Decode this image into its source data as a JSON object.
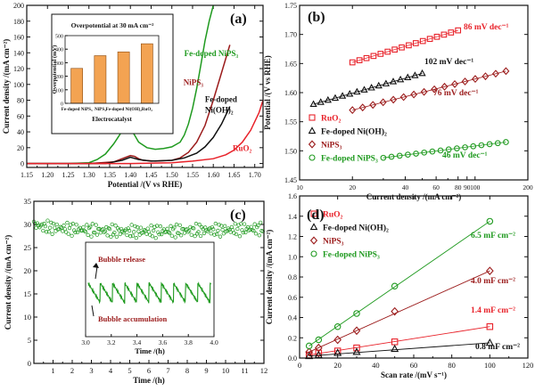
{
  "colors": {
    "red": "#e8222a",
    "black": "#111111",
    "darkred": "#9b1b1b",
    "green": "#1f9a1f",
    "bar": "#f3a352",
    "barEdge": "#8a4a10"
  },
  "chart_data": [
    {
      "panel": "(a)",
      "type": "line",
      "xlabel": "Potential /(V vs RHE)",
      "ylabel": "Current density /(mA cm⁻²)",
      "xlim": [
        1.15,
        1.72
      ],
      "ylim": [
        -5,
        200
      ],
      "xticks": [
        "1.15",
        "1.20",
        "1.25",
        "1.30",
        "1.35",
        "1.40",
        "1.45",
        "1.50",
        "1.55",
        "1.60",
        "1.65",
        "1.70"
      ],
      "yticks": [
        "0",
        "20",
        "40",
        "60",
        "80",
        "100",
        "120",
        "140",
        "160",
        "180",
        "200"
      ],
      "series": [
        {
          "name": "Fe-doped NiPS₃",
          "color": "green",
          "x": [
            1.15,
            1.25,
            1.3,
            1.32,
            1.34,
            1.36,
            1.37,
            1.38,
            1.39,
            1.4,
            1.41,
            1.42,
            1.44,
            1.46,
            1.48,
            1.5,
            1.52,
            1.53,
            1.54,
            1.55,
            1.56,
            1.57,
            1.58,
            1.59,
            1.6
          ],
          "y": [
            0,
            0,
            1,
            5,
            12,
            25,
            33,
            41,
            46,
            44,
            36,
            27,
            20,
            18,
            19,
            21,
            27,
            36,
            50,
            70,
            95,
            125,
            155,
            180,
            200
          ]
        },
        {
          "name": "NiPS₃",
          "color": "darkred",
          "x": [
            1.15,
            1.3,
            1.36,
            1.38,
            1.4,
            1.41,
            1.42,
            1.43,
            1.46,
            1.5,
            1.52,
            1.54,
            1.56,
            1.58,
            1.6,
            1.62,
            1.64
          ],
          "y": [
            0,
            0,
            2,
            6,
            10,
            9,
            6,
            4,
            3,
            4,
            7,
            14,
            27,
            48,
            80,
            115,
            150
          ]
        },
        {
          "name": "Fe-doped Ni(OH)₂",
          "color": "black",
          "x": [
            1.15,
            1.34,
            1.38,
            1.4,
            1.42,
            1.45,
            1.5,
            1.53,
            1.56,
            1.58,
            1.6,
            1.62,
            1.64
          ],
          "y": [
            0,
            0,
            4,
            8,
            5,
            3,
            4,
            7,
            13,
            21,
            33,
            50,
            72
          ]
        },
        {
          "name": "RuO₂",
          "color": "red",
          "x": [
            1.15,
            1.4,
            1.5,
            1.55,
            1.6,
            1.63,
            1.65,
            1.67,
            1.69,
            1.71,
            1.72
          ],
          "y": [
            0,
            0,
            1,
            3,
            6,
            11,
            17,
            27,
            42,
            64,
            80
          ]
        }
      ],
      "labels": [
        {
          "text": "Fe-doped NiPS₃",
          "color": "green",
          "x": 1.53,
          "y": 136
        },
        {
          "text": "NiPS₃",
          "color": "darkred",
          "x": 1.528,
          "y": 99
        },
        {
          "text": "Fe-doped",
          "color": "black",
          "x": 1.58,
          "y": 78
        },
        {
          "text": "Ni(OH)₂",
          "color": "black",
          "x": 1.58,
          "y": 64
        },
        {
          "text": "RuO₂",
          "color": "red",
          "x": 1.647,
          "y": 16
        }
      ],
      "inset": {
        "title": "Overpotential at 30 mA cm⁻²",
        "ylabel": "Overpotential (mV)",
        "xlabel": "Electrocatalyst",
        "ylim": [
          0,
          500
        ],
        "yticks": [
          "0",
          "100",
          "200",
          "300",
          "400",
          "500"
        ],
        "categories": [
          "Fe-doped NiPS₃",
          "NiPS₃",
          "Fe-doped Ni(OH)₂",
          "RuO₂"
        ],
        "values": [
          258,
          352,
          380,
          440
        ]
      }
    },
    {
      "panel": "(b)",
      "type": "scatter",
      "xscale": "log",
      "xlabel": "Current density /(mA cm⁻²)",
      "ylabel": "Potential /(V vs RHE)",
      "xlim": [
        10,
        200
      ],
      "ylim": [
        1.45,
        1.75
      ],
      "xticks": [
        {
          "v": 10,
          "t": "10"
        },
        {
          "v": 20,
          "t": "20"
        },
        {
          "v": 40,
          "t": "40"
        },
        {
          "v": 60,
          "t": "60"
        },
        {
          "v": 80,
          "t": "80"
        },
        {
          "v": 90,
          "t": "90"
        },
        {
          "v": 100,
          "t": "100"
        },
        {
          "v": 200,
          "t": "200"
        }
      ],
      "yticks": [
        "1.45",
        "1.50",
        "1.55",
        "1.60",
        "1.65",
        "1.70",
        "1.75"
      ],
      "series": [
        {
          "name": "RuO₂",
          "marker": "square",
          "color": "red",
          "x": [
            20,
            80
          ],
          "y": [
            1.652,
            1.707
          ],
          "slope": "86 mV dec⁻¹"
        },
        {
          "name": "Fe-doped Ni(OH)₂",
          "marker": "triangle",
          "color": "black",
          "x": [
            12,
            50
          ],
          "y": [
            1.58,
            1.633
          ],
          "slope": "102 mV dec⁻¹"
        },
        {
          "name": "NiPS₃",
          "marker": "diamond",
          "color": "darkred",
          "x": [
            20,
            150
          ],
          "y": [
            1.57,
            1.637
          ],
          "slope": "76 mV dec⁻¹"
        },
        {
          "name": "Fe-doped NiPS₃",
          "marker": "circle",
          "color": "green",
          "x": [
            30,
            150
          ],
          "y": [
            1.488,
            1.515
          ],
          "slope": "46 mV dec⁻¹"
        }
      ]
    },
    {
      "panel": "(c)",
      "type": "line",
      "xlabel": "Time /(h)",
      "ylabel": "Current density /(mA cm⁻²)",
      "xlim": [
        0,
        12
      ],
      "ylim": [
        0,
        35
      ],
      "xticks": [
        "1",
        "2",
        "3",
        "4",
        "5",
        "6",
        "7",
        "8",
        "9",
        "10",
        "11",
        "12"
      ],
      "yticks": [
        "0",
        "5",
        "10",
        "15",
        "20",
        "25",
        "30",
        "35"
      ],
      "series": [
        {
          "name": "Fe-doped NiPS₃",
          "color": "green",
          "x": [
            0,
            0.5,
            1,
            2,
            3,
            4,
            5,
            6,
            7,
            8,
            9,
            10,
            11,
            12
          ],
          "y": [
            30,
            29.5,
            29.3,
            29,
            28.8,
            28.6,
            28.5,
            28.5,
            28.6,
            28.7,
            28.8,
            28.8,
            29,
            29.1
          ]
        }
      ],
      "inset": {
        "xlabel": "Time /(h)",
        "xlim": [
          3.0,
          4.0
        ],
        "xticks": [
          "3.0",
          "3.2",
          "3.4",
          "3.6",
          "3.8",
          "4.0"
        ],
        "cycle_h": 0.095,
        "annotations": [
          "Bubble release",
          "Bubble accumulation"
        ]
      }
    },
    {
      "panel": "(d)",
      "type": "scatter",
      "xlabel": "Scan rate /(mV s⁻¹)",
      "ylabel": "Current density /(mA cm⁻²)",
      "xlim": [
        0,
        120
      ],
      "ylim": [
        0,
        1.6
      ],
      "xticks": [
        "0",
        "20",
        "40",
        "60",
        "80",
        "100",
        "120"
      ],
      "yticks": [
        "0.0",
        "0.2",
        "0.4",
        "0.6",
        "0.8",
        "1.0",
        "1.2",
        "1.4",
        "1.6"
      ],
      "x": [
        5,
        10,
        20,
        30,
        50,
        100
      ],
      "series": [
        {
          "name": "RuO₂",
          "marker": "square",
          "color": "red",
          "values": [
            0.03,
            0.05,
            0.07,
            0.1,
            0.16,
            0.31
          ],
          "label": "1.4 mF cm⁻²"
        },
        {
          "name": "Fe-doped Ni(OH)₂",
          "marker": "triangle",
          "color": "black",
          "values": [
            0.02,
            0.03,
            0.05,
            0.06,
            0.09,
            0.15
          ],
          "label": "0.8 mF cm⁻²"
        },
        {
          "name": "NiPS₃",
          "marker": "diamond",
          "color": "darkred",
          "values": [
            0.06,
            0.1,
            0.18,
            0.27,
            0.46,
            0.86
          ],
          "label": "4.0 mF cm⁻²"
        },
        {
          "name": "Fe-doped NiPS₃",
          "marker": "circle",
          "color": "green",
          "values": [
            0.12,
            0.18,
            0.31,
            0.44,
            0.71,
            1.35
          ],
          "label": "6.5 mF cm⁻²"
        }
      ]
    }
  ]
}
